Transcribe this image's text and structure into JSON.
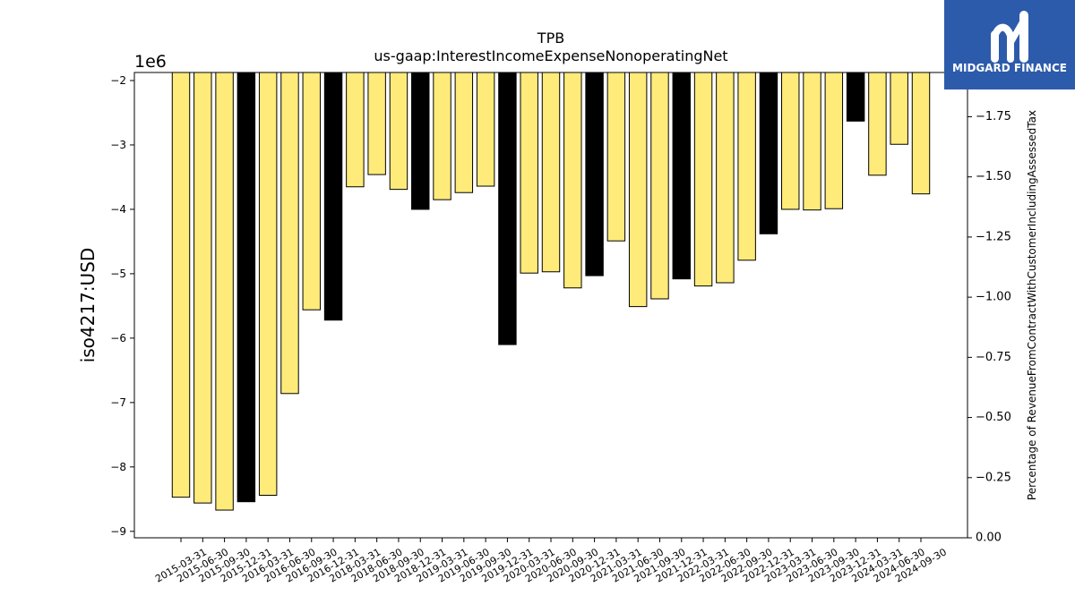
{
  "logo": {
    "text": "MIDGARD FINANCE",
    "icon": "midgard-logo-icon",
    "background": "#2d5bab",
    "foreground": "#ffffff"
  },
  "chart_data": {
    "type": "bar",
    "title": "TPB",
    "subtitle": "us-gaap:InterestIncomeExpenseNonoperatingNet",
    "ylabel": "iso4217:USD",
    "y_offset_label": "1e6",
    "y2label": "Percentage of RevenueFromContractWithCustomerIncludingAssessedTax",
    "categories": [
      "2015-03-31",
      "2015-06-30",
      "2015-09-30",
      "2015-12-31",
      "2016-03-31",
      "2016-06-30",
      "2016-09-30",
      "2016-12-31",
      "2018-03-31",
      "2018-06-30",
      "2018-09-30",
      "2018-12-31",
      "2019-03-31",
      "2019-06-30",
      "2019-09-30",
      "2019-12-31",
      "2020-03-31",
      "2020-06-30",
      "2020-09-30",
      "2020-12-31",
      "2021-03-31",
      "2021-06-30",
      "2021-09-30",
      "2021-12-31",
      "2022-03-31",
      "2022-06-30",
      "2022-09-30",
      "2022-12-31",
      "2023-03-31",
      "2023-06-30",
      "2023-09-30",
      "2023-12-31",
      "2024-03-31",
      "2024-06-30",
      "2024-09-30"
    ],
    "values": [
      -8.47,
      -8.56,
      -8.67,
      -8.54,
      -8.44,
      -6.86,
      -5.56,
      -5.72,
      -3.65,
      -3.46,
      -3.69,
      -4.0,
      -3.85,
      -3.74,
      -3.64,
      -6.1,
      -4.99,
      -4.97,
      -5.22,
      -5.03,
      -4.49,
      -5.51,
      -5.39,
      -5.08,
      -5.19,
      -5.14,
      -4.79,
      -4.38,
      -4.0,
      -4.01,
      -3.99,
      -2.63,
      -3.47,
      -2.99,
      -3.76
    ],
    "bar_colors": [
      "#ffeb7a",
      "#ffeb7a",
      "#ffeb7a",
      "#000000",
      "#ffeb7a",
      "#ffeb7a",
      "#ffeb7a",
      "#000000",
      "#ffeb7a",
      "#ffeb7a",
      "#ffeb7a",
      "#000000",
      "#ffeb7a",
      "#ffeb7a",
      "#ffeb7a",
      "#000000",
      "#ffeb7a",
      "#ffeb7a",
      "#ffeb7a",
      "#000000",
      "#ffeb7a",
      "#ffeb7a",
      "#ffeb7a",
      "#000000",
      "#ffeb7a",
      "#ffeb7a",
      "#ffeb7a",
      "#000000",
      "#ffeb7a",
      "#ffeb7a",
      "#ffeb7a",
      "#000000",
      "#ffeb7a",
      "#ffeb7a",
      "#ffeb7a"
    ],
    "edge_color": "#000000",
    "ylim": [
      -9.1,
      -1.875
    ],
    "yticks": [
      {
        "value": -2,
        "label": "−2"
      },
      {
        "value": -3,
        "label": "−3"
      },
      {
        "value": -4,
        "label": "−4"
      },
      {
        "value": -5,
        "label": "−5"
      },
      {
        "value": -6,
        "label": "−6"
      },
      {
        "value": -7,
        "label": "−7"
      },
      {
        "value": -8,
        "label": "−8"
      },
      {
        "value": -9,
        "label": "−9"
      }
    ],
    "y2lim": [
      0,
      -1.934
    ],
    "y2ticks": [
      {
        "value": 0,
        "label": "0.00"
      },
      {
        "value": -0.25,
        "label": "−0.25"
      },
      {
        "value": -0.5,
        "label": "−0.50"
      },
      {
        "value": -0.75,
        "label": "−0.75"
      },
      {
        "value": -1.0,
        "label": "−1.00"
      },
      {
        "value": -1.25,
        "label": "−1.25"
      },
      {
        "value": -1.5,
        "label": "−1.50"
      },
      {
        "value": -1.75,
        "label": "−1.75"
      }
    ],
    "grid": false,
    "legend": false
  }
}
